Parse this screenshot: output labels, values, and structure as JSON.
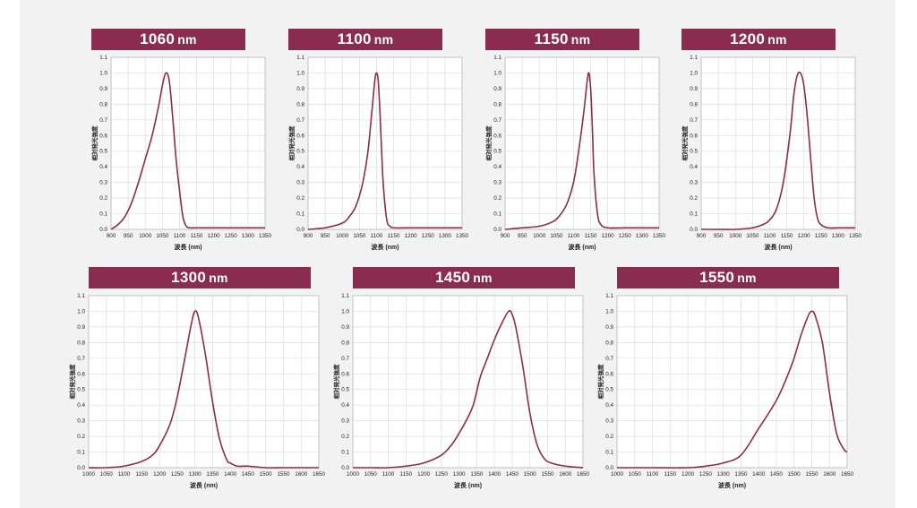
{
  "colors": {
    "accent": "#8a2c4d",
    "curve": "#8a2c4d",
    "grid": "#dddddd",
    "panel": "#f2f2f2"
  },
  "chart_data": [
    {
      "type": "line",
      "title": "1060",
      "unit": "nm",
      "xlabel": "波長 (nm)",
      "ylabel": "相対発光強度",
      "xlim": [
        900,
        1350
      ],
      "ylim": [
        0,
        1.1
      ],
      "xticks": [
        900,
        950,
        1000,
        1050,
        1100,
        1150,
        1200,
        1250,
        1300,
        1350
      ],
      "yticks": [
        "0.0",
        "0.1",
        "0.2",
        "0.3",
        "0.4",
        "0.5",
        "0.6",
        "0.7",
        "0.8",
        "0.9",
        "1.0",
        "1.1"
      ],
      "grid": true,
      "series": [
        {
          "name": "1060 nm",
          "x": [
            900,
            920,
            940,
            960,
            980,
            1000,
            1020,
            1040,
            1050,
            1060,
            1070,
            1080,
            1090,
            1100,
            1110,
            1120,
            1130,
            1150,
            1200,
            1250,
            1300,
            1350
          ],
          "y": [
            0.0,
            0.03,
            0.08,
            0.17,
            0.3,
            0.45,
            0.6,
            0.8,
            0.92,
            1.0,
            0.95,
            0.72,
            0.45,
            0.25,
            0.08,
            0.02,
            0.01,
            0.01,
            0.01,
            0.01,
            0.01,
            0.01
          ]
        }
      ]
    },
    {
      "type": "line",
      "title": "1100",
      "unit": "nm",
      "xlabel": "波長 (nm)",
      "ylabel": "相対発光強度",
      "xlim": [
        900,
        1350
      ],
      "ylim": [
        0,
        1.1
      ],
      "xticks": [
        900,
        950,
        1000,
        1050,
        1100,
        1150,
        1200,
        1250,
        1300,
        1350
      ],
      "yticks": [
        "0.0",
        "0.1",
        "0.2",
        "0.3",
        "0.4",
        "0.5",
        "0.6",
        "0.7",
        "0.8",
        "0.9",
        "1.0",
        "1.1"
      ],
      "grid": true,
      "series": [
        {
          "name": "1100 nm",
          "x": [
            900,
            950,
            1000,
            1020,
            1040,
            1060,
            1075,
            1085,
            1095,
            1100,
            1105,
            1110,
            1115,
            1120,
            1130,
            1140,
            1150,
            1200,
            1250,
            1300,
            1350
          ],
          "y": [
            0.0,
            0.01,
            0.04,
            0.08,
            0.15,
            0.3,
            0.5,
            0.72,
            0.95,
            1.0,
            0.95,
            0.75,
            0.5,
            0.28,
            0.06,
            0.02,
            0.01,
            0.01,
            0.01,
            0.01,
            0.01
          ]
        }
      ]
    },
    {
      "type": "line",
      "title": "1150",
      "unit": "nm",
      "xlabel": "波長 (nm)",
      "ylabel": "相対発光強度",
      "xlim": [
        900,
        1350
      ],
      "ylim": [
        0,
        1.1
      ],
      "xticks": [
        900,
        950,
        1000,
        1050,
        1100,
        1150,
        1200,
        1250,
        1300,
        1350
      ],
      "yticks": [
        "0.0",
        "0.1",
        "0.2",
        "0.3",
        "0.4",
        "0.5",
        "0.6",
        "0.7",
        "0.8",
        "0.9",
        "1.0",
        "1.1"
      ],
      "grid": true,
      "series": [
        {
          "name": "1150 nm",
          "x": [
            900,
            950,
            1000,
            1040,
            1060,
            1080,
            1100,
            1115,
            1130,
            1140,
            1145,
            1150,
            1155,
            1160,
            1170,
            1180,
            1200,
            1250,
            1300,
            1350
          ],
          "y": [
            0.0,
            0.01,
            0.02,
            0.05,
            0.09,
            0.16,
            0.3,
            0.5,
            0.75,
            0.95,
            1.0,
            0.9,
            0.65,
            0.35,
            0.1,
            0.03,
            0.01,
            0.01,
            0.01,
            0.01
          ]
        }
      ]
    },
    {
      "type": "line",
      "title": "1200",
      "unit": "nm",
      "xlabel": "波長 (nm)",
      "ylabel": "相対発光強度",
      "xlim": [
        900,
        1350
      ],
      "ylim": [
        0,
        1.1
      ],
      "xticks": [
        900,
        950,
        1000,
        1050,
        1100,
        1150,
        1200,
        1250,
        1300,
        1350
      ],
      "yticks": [
        "0.0",
        "0.1",
        "0.2",
        "0.3",
        "0.4",
        "0.5",
        "0.6",
        "0.7",
        "0.8",
        "0.9",
        "1.0",
        "1.1"
      ],
      "grid": true,
      "series": [
        {
          "name": "1200 nm",
          "x": [
            900,
            950,
            1000,
            1050,
            1080,
            1100,
            1120,
            1140,
            1160,
            1170,
            1180,
            1190,
            1200,
            1210,
            1220,
            1230,
            1240,
            1250,
            1270,
            1300,
            1350
          ],
          "y": [
            0.0,
            0.0,
            0.0,
            0.01,
            0.03,
            0.06,
            0.13,
            0.3,
            0.62,
            0.85,
            0.98,
            1.0,
            0.92,
            0.72,
            0.45,
            0.2,
            0.07,
            0.03,
            0.01,
            0.01,
            0.01
          ]
        }
      ]
    },
    {
      "type": "line",
      "title": "1300",
      "unit": "nm",
      "xlabel": "波長 (nm)",
      "ylabel": "相対発光強度",
      "xlim": [
        1000,
        1650
      ],
      "ylim": [
        0,
        1.1
      ],
      "xticks": [
        1000,
        1050,
        1100,
        1150,
        1200,
        1250,
        1300,
        1350,
        1400,
        1450,
        1500,
        1550,
        1600,
        1650
      ],
      "yticks": [
        "0.0",
        "0.1",
        "0.2",
        "0.3",
        "0.4",
        "0.5",
        "0.6",
        "0.7",
        "0.8",
        "0.9",
        "1.0",
        "1.1"
      ],
      "grid": true,
      "series": [
        {
          "name": "1300 nm",
          "x": [
            1000,
            1050,
            1100,
            1150,
            1180,
            1200,
            1230,
            1250,
            1270,
            1290,
            1300,
            1310,
            1330,
            1350,
            1370,
            1390,
            1400,
            1420,
            1450,
            1500,
            1550,
            1600,
            1650
          ],
          "y": [
            0.0,
            0.0,
            0.01,
            0.04,
            0.08,
            0.14,
            0.28,
            0.45,
            0.68,
            0.92,
            1.0,
            0.96,
            0.72,
            0.42,
            0.18,
            0.05,
            0.03,
            0.01,
            0.01,
            0.0,
            0.0,
            0.0,
            0.0
          ]
        }
      ]
    },
    {
      "type": "line",
      "title": "1450",
      "unit": "nm",
      "xlabel": "波長 (nm)",
      "ylabel": "相対発光強度",
      "xlim": [
        1000,
        1650
      ],
      "ylim": [
        0,
        1.1
      ],
      "xticks": [
        1000,
        1050,
        1100,
        1150,
        1200,
        1250,
        1300,
        1350,
        1400,
        1450,
        1500,
        1550,
        1600,
        1650
      ],
      "yticks": [
        "0.0",
        "0.1",
        "0.2",
        "0.3",
        "0.4",
        "0.5",
        "0.6",
        "0.7",
        "0.8",
        "0.9",
        "1.0",
        "1.1"
      ],
      "grid": true,
      "series": [
        {
          "name": "1450 nm",
          "x": [
            1000,
            1050,
            1100,
            1150,
            1200,
            1250,
            1280,
            1300,
            1320,
            1340,
            1360,
            1380,
            1400,
            1420,
            1440,
            1450,
            1460,
            1480,
            1500,
            1520,
            1540,
            1560,
            1600,
            1650
          ],
          "y": [
            0.0,
            0.0,
            0.0,
            0.01,
            0.03,
            0.08,
            0.15,
            0.22,
            0.3,
            0.4,
            0.58,
            0.7,
            0.82,
            0.92,
            1.0,
            0.98,
            0.9,
            0.65,
            0.35,
            0.15,
            0.06,
            0.03,
            0.01,
            0.0
          ]
        }
      ]
    },
    {
      "type": "line",
      "title": "1550",
      "unit": "nm",
      "xlabel": "波長 (nm)",
      "ylabel": "相対発光強度",
      "xlim": [
        1000,
        1650
      ],
      "ylim": [
        0,
        1.1
      ],
      "xticks": [
        1000,
        1050,
        1100,
        1150,
        1200,
        1250,
        1300,
        1350,
        1400,
        1450,
        1500,
        1550,
        1600,
        1650
      ],
      "yticks": [
        "0.0",
        "0.1",
        "0.2",
        "0.3",
        "0.4",
        "0.5",
        "0.6",
        "0.7",
        "0.8",
        "0.9",
        "1.0",
        "1.1"
      ],
      "grid": true,
      "series": [
        {
          "name": "1550 nm",
          "x": [
            1000,
            1100,
            1200,
            1250,
            1300,
            1350,
            1400,
            1450,
            1480,
            1500,
            1520,
            1540,
            1550,
            1560,
            1580,
            1600,
            1620,
            1640,
            1650
          ],
          "y": [
            0.0,
            0.0,
            0.0,
            0.01,
            0.03,
            0.08,
            0.25,
            0.43,
            0.58,
            0.7,
            0.85,
            0.97,
            1.0,
            0.97,
            0.8,
            0.48,
            0.22,
            0.12,
            0.1
          ]
        }
      ]
    }
  ]
}
